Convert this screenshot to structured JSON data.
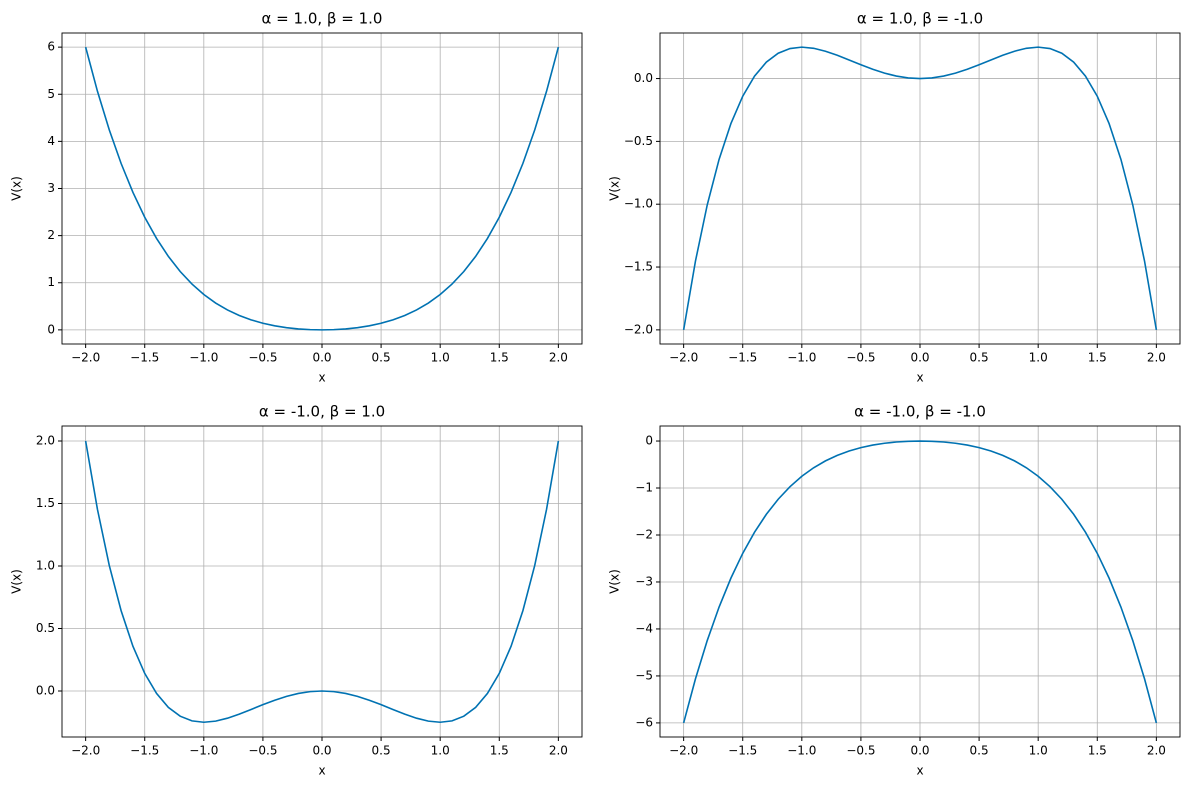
{
  "chart_data": [
    {
      "type": "line",
      "title": "α = 1.0, β = 1.0",
      "xlabel": "x",
      "ylabel": "V(x)",
      "grid": true,
      "x": [
        -2,
        -1.9,
        -1.8,
        -1.7,
        -1.6,
        -1.5,
        -1.4,
        -1.3,
        -1.2,
        -1.1,
        -1,
        -0.9,
        -0.8,
        -0.7,
        -0.6,
        -0.5,
        -0.4,
        -0.3,
        -0.2,
        -0.1,
        0,
        0.1,
        0.2,
        0.3,
        0.4,
        0.5,
        0.6,
        0.7,
        0.8,
        0.9,
        1,
        1.1,
        1.2,
        1.3,
        1.4,
        1.5,
        1.6,
        1.7,
        1.8,
        1.9,
        2
      ],
      "series": [
        {
          "color": "#0072b2",
          "values": [
            6,
            5.063,
            4.2444,
            3.533,
            2.9184,
            2.3906,
            1.9404,
            1.559,
            1.2384,
            0.971,
            0.75,
            0.569,
            0.4224,
            0.305,
            0.2124,
            0.1406,
            0.0864,
            0.047,
            0.0204,
            0.005,
            0,
            0.005,
            0.0204,
            0.047,
            0.0864,
            0.1406,
            0.2124,
            0.305,
            0.4224,
            0.569,
            0.75,
            0.971,
            1.2384,
            1.559,
            1.9404,
            2.3906,
            2.9184,
            3.533,
            4.2444,
            5.063,
            6
          ]
        }
      ],
      "xlim": [
        -2.2,
        2.2
      ],
      "xticks": [
        {
          "value": -2,
          "label": "−2.0"
        },
        {
          "value": -1.5,
          "label": "−1.5"
        },
        {
          "value": -1,
          "label": "−1.0"
        },
        {
          "value": -0.5,
          "label": "−0.5"
        },
        {
          "value": 0,
          "label": "0.0"
        },
        {
          "value": 0.5,
          "label": "0.5"
        },
        {
          "value": 1,
          "label": "1.0"
        },
        {
          "value": 1.5,
          "label": "1.5"
        },
        {
          "value": 2,
          "label": "2.0"
        }
      ],
      "ylim": [
        -0.3,
        6.3
      ],
      "yticks": [
        0,
        1,
        2,
        3,
        4,
        5,
        6
      ]
    },
    {
      "type": "line",
      "title": "α = 1.0, β = -1.0",
      "xlabel": "x",
      "ylabel": "V(x)",
      "grid": true,
      "x": [
        -2,
        -1.9,
        -1.8,
        -1.7,
        -1.6,
        -1.5,
        -1.4,
        -1.3,
        -1.2,
        -1.1,
        -1,
        -0.9,
        -0.8,
        -0.7,
        -0.6,
        -0.5,
        -0.4,
        -0.3,
        -0.2,
        -0.1,
        0,
        0.1,
        0.2,
        0.3,
        0.4,
        0.5,
        0.6,
        0.7,
        0.8,
        0.9,
        1,
        1.1,
        1.2,
        1.3,
        1.4,
        1.5,
        1.6,
        1.7,
        1.8,
        1.9,
        2
      ],
      "series": [
        {
          "color": "#0072b2",
          "values": [
            -2,
            -1.453,
            -1.0044,
            -0.643,
            -0.3584,
            -0.1406,
            0.0196,
            0.131,
            0.2016,
            0.239,
            0.25,
            0.241,
            0.2176,
            0.185,
            0.1476,
            0.1094,
            0.0736,
            0.043,
            0.0196,
            0.005,
            0,
            0.005,
            0.0196,
            0.043,
            0.0736,
            0.1094,
            0.1476,
            0.185,
            0.2176,
            0.241,
            0.25,
            0.239,
            0.2016,
            0.131,
            0.0196,
            -0.1406,
            -0.3584,
            -0.643,
            -1.0044,
            -1.453,
            -2
          ]
        }
      ],
      "xlim": [
        -2.2,
        2.2
      ],
      "xticks": [
        {
          "value": -2,
          "label": "−2.0"
        },
        {
          "value": -1.5,
          "label": "−1.5"
        },
        {
          "value": -1,
          "label": "−1.0"
        },
        {
          "value": -0.5,
          "label": "−0.5"
        },
        {
          "value": 0,
          "label": "0.0"
        },
        {
          "value": 0.5,
          "label": "0.5"
        },
        {
          "value": 1,
          "label": "1.0"
        },
        {
          "value": 1.5,
          "label": "1.5"
        },
        {
          "value": 2,
          "label": "2.0"
        }
      ],
      "ylim": [
        -2.1125,
        0.3625
      ],
      "yticks": [
        {
          "value": -2,
          "label": "−2.0"
        },
        {
          "value": -1.5,
          "label": "−1.5"
        },
        {
          "value": -1,
          "label": "−1.0"
        },
        {
          "value": -0.5,
          "label": "−0.5"
        },
        {
          "value": 0,
          "label": "0.0"
        }
      ]
    },
    {
      "type": "line",
      "title": "α = -1.0, β = 1.0",
      "xlabel": "x",
      "ylabel": "V(x)",
      "grid": true,
      "x": [
        -2,
        -1.9,
        -1.8,
        -1.7,
        -1.6,
        -1.5,
        -1.4,
        -1.3,
        -1.2,
        -1.1,
        -1,
        -0.9,
        -0.8,
        -0.7,
        -0.6,
        -0.5,
        -0.4,
        -0.3,
        -0.2,
        -0.1,
        0,
        0.1,
        0.2,
        0.3,
        0.4,
        0.5,
        0.6,
        0.7,
        0.8,
        0.9,
        1,
        1.1,
        1.2,
        1.3,
        1.4,
        1.5,
        1.6,
        1.7,
        1.8,
        1.9,
        2
      ],
      "series": [
        {
          "color": "#0072b2",
          "values": [
            2,
            1.453,
            1.0044,
            0.643,
            0.3584,
            0.1406,
            -0.0196,
            -0.131,
            -0.2016,
            -0.239,
            -0.25,
            -0.241,
            -0.2176,
            -0.185,
            -0.1476,
            -0.1094,
            -0.0736,
            -0.043,
            -0.0196,
            -0.005,
            0,
            -0.005,
            -0.0196,
            -0.043,
            -0.0736,
            -0.1094,
            -0.1476,
            -0.185,
            -0.2176,
            -0.241,
            -0.25,
            -0.239,
            -0.2016,
            -0.131,
            -0.0196,
            0.1406,
            0.3584,
            0.643,
            1.0044,
            1.453,
            2
          ]
        }
      ],
      "xlim": [
        -2.2,
        2.2
      ],
      "xticks": [
        {
          "value": -2,
          "label": "−2.0"
        },
        {
          "value": -1.5,
          "label": "−1.5"
        },
        {
          "value": -1,
          "label": "−1.0"
        },
        {
          "value": -0.5,
          "label": "−0.5"
        },
        {
          "value": 0,
          "label": "0.0"
        },
        {
          "value": 0.5,
          "label": "0.5"
        },
        {
          "value": 1,
          "label": "1.0"
        },
        {
          "value": 1.5,
          "label": "1.5"
        },
        {
          "value": 2,
          "label": "2.0"
        }
      ],
      "ylim": [
        -0.368,
        2.12
      ],
      "yticks": [
        {
          "value": 0,
          "label": "0.0"
        },
        {
          "value": 0.5,
          "label": "0.5"
        },
        {
          "value": 1,
          "label": "1.0"
        },
        {
          "value": 1.5,
          "label": "1.5"
        },
        {
          "value": 2,
          "label": "2.0"
        }
      ]
    },
    {
      "type": "line",
      "title": "α = -1.0, β = -1.0",
      "xlabel": "x",
      "ylabel": "V(x)",
      "grid": true,
      "x": [
        -2,
        -1.9,
        -1.8,
        -1.7,
        -1.6,
        -1.5,
        -1.4,
        -1.3,
        -1.2,
        -1.1,
        -1,
        -0.9,
        -0.8,
        -0.7,
        -0.6,
        -0.5,
        -0.4,
        -0.3,
        -0.2,
        -0.1,
        0,
        0.1,
        0.2,
        0.3,
        0.4,
        0.5,
        0.6,
        0.7,
        0.8,
        0.9,
        1,
        1.1,
        1.2,
        1.3,
        1.4,
        1.5,
        1.6,
        1.7,
        1.8,
        1.9,
        2
      ],
      "series": [
        {
          "color": "#0072b2",
          "values": [
            -6,
            -5.063,
            -4.2444,
            -3.533,
            -2.9184,
            -2.3906,
            -1.9404,
            -1.559,
            -1.2384,
            -0.971,
            -0.75,
            -0.569,
            -0.4224,
            -0.305,
            -0.2124,
            -0.1406,
            -0.0864,
            -0.047,
            -0.0204,
            -0.005,
            0,
            -0.005,
            -0.0204,
            -0.047,
            -0.0864,
            -0.1406,
            -0.2124,
            -0.305,
            -0.4224,
            -0.569,
            -0.75,
            -0.971,
            -1.2384,
            -1.559,
            -1.9404,
            -2.3906,
            -2.9184,
            -3.533,
            -4.2444,
            -5.063,
            -6
          ]
        }
      ],
      "xlim": [
        -2.2,
        2.2
      ],
      "xticks": [
        {
          "value": -2,
          "label": "−2.0"
        },
        {
          "value": -1.5,
          "label": "−1.5"
        },
        {
          "value": -1,
          "label": "−1.0"
        },
        {
          "value": -0.5,
          "label": "−0.5"
        },
        {
          "value": 0,
          "label": "0.0"
        },
        {
          "value": 0.5,
          "label": "0.5"
        },
        {
          "value": 1,
          "label": "1.0"
        },
        {
          "value": 1.5,
          "label": "1.5"
        },
        {
          "value": 2,
          "label": "2.0"
        }
      ],
      "ylim": [
        -6.3,
        0.32
      ],
      "yticks": [
        {
          "value": -6,
          "label": "−6"
        },
        {
          "value": -5,
          "label": "−5"
        },
        {
          "value": -4,
          "label": "−4"
        },
        {
          "value": -3,
          "label": "−3"
        },
        {
          "value": -2,
          "label": "−2"
        },
        {
          "value": -1,
          "label": "−1"
        },
        0
      ]
    }
  ]
}
